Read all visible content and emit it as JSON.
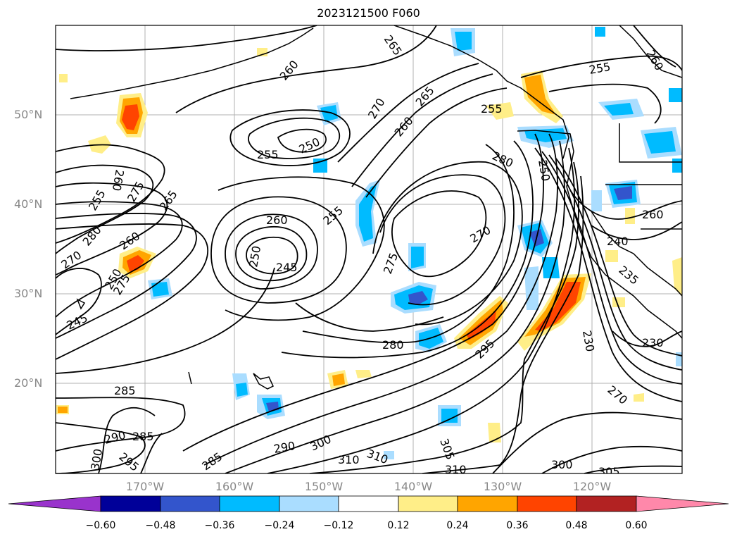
{
  "title": "2023121500 F060",
  "map": {
    "lat_labels": [
      "50°N",
      "40°N",
      "30°N",
      "20°N"
    ],
    "lon_labels": [
      "170°W",
      "160°W",
      "150°W",
      "140°W",
      "130°W",
      "120°W"
    ],
    "contour_labels": [
      "265",
      "260",
      "265",
      "270",
      "260",
      "255",
      "250",
      "255",
      "260",
      "275",
      "265",
      "280",
      "260",
      "270",
      "275",
      "250",
      "255",
      "260",
      "250",
      "245",
      "245",
      "255",
      "270",
      "275",
      "280",
      "285",
      "290",
      "285",
      "295",
      "300",
      "285",
      "290",
      "300",
      "310",
      "310",
      "305",
      "310",
      "295",
      "280",
      "255",
      "260",
      "240",
      "260",
      "230",
      "270",
      "300",
      "305",
      "230",
      "235",
      "250"
    ]
  },
  "colorbar": {
    "ticks": [
      "−0.60",
      "−0.48",
      "−0.36",
      "−0.24",
      "−0.12",
      "0.12",
      "0.24",
      "0.36",
      "0.48",
      "0.60"
    ],
    "colors": [
      "#9933cc",
      "#000099",
      "#3355cc",
      "#00bbff",
      "#aaddff",
      "#ffffff",
      "#ffee88",
      "#ffa500",
      "#ff4400",
      "#b22222",
      "#ff88aa"
    ]
  }
}
